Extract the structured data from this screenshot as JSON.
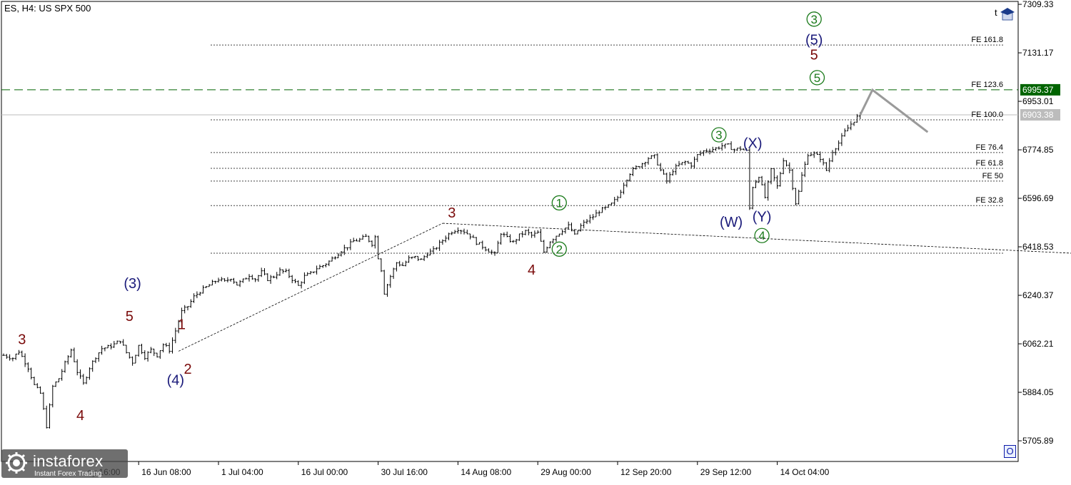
{
  "header": {
    "symbol": "ES, H4:  US SPX 500"
  },
  "corner_top_label": "t",
  "corner_bottom_label": "O",
  "logo": {
    "name": "instaforex",
    "tagline": "Instant Forex Trading"
  },
  "colors": {
    "price_bar": "#000000",
    "label_wave_red": "#7a0a0a",
    "label_wave_navy": "#1a1a7a",
    "label_wave_green": "#1a7a1a",
    "fib_line": "#444444",
    "target_line": "#006400",
    "current_line": "#bcbcbc",
    "forecast_line": "#9a9a9a"
  },
  "chart_data": {
    "type": "candlestick",
    "symbol": "ES",
    "timeframe": "H4",
    "y_axis": {
      "min": 5630,
      "max": 7320,
      "tick_labels": [
        "7309.33",
        "7131.17",
        "6953.01",
        "6774.85",
        "6596.69",
        "6418.53",
        "6240.37",
        "6062.21",
        "5884.05",
        "5705.89"
      ],
      "ticks": [
        7309.33,
        7131.17,
        6953.01,
        6774.85,
        6596.69,
        6418.53,
        6240.37,
        6062.21,
        5884.05,
        5705.89
      ]
    },
    "x_axis": {
      "tick_labels": [
        "16 Jun 08:00",
        "1 Jul 04:00",
        "16 Jul 00:00",
        "30 Jul 16:00",
        "14 Aug 08:00",
        "29 Aug 00:00",
        "12 Sep 20:00",
        "29 Sep 12:00",
        "14 Oct 04:00"
      ],
      "tick_bars": [
        44,
        70,
        96,
        122,
        148,
        174,
        200,
        226,
        252
      ],
      "partial_labels": [
        "ay 16:00"
      ],
      "partial_bars": [
        18
      ]
    },
    "price_labels": [
      {
        "text": "6995.37",
        "value": 6995.37,
        "style": "target"
      },
      {
        "text": "6903.38",
        "value": 6903.38,
        "style": "current"
      }
    ],
    "price_series": [
      {
        "bar": 0,
        "price": 6020
      },
      {
        "bar": 3,
        "price": 6010
      },
      {
        "bar": 5,
        "price": 6035
      },
      {
        "bar": 8,
        "price": 5975
      },
      {
        "bar": 10,
        "price": 5910
      },
      {
        "bar": 12,
        "price": 5880
      },
      {
        "bar": 14,
        "price": 5760
      },
      {
        "bar": 16,
        "price": 5905
      },
      {
        "bar": 18,
        "price": 5935
      },
      {
        "bar": 20,
        "price": 5990
      },
      {
        "bar": 22,
        "price": 6040
      },
      {
        "bar": 24,
        "price": 5960
      },
      {
        "bar": 26,
        "price": 5915
      },
      {
        "bar": 28,
        "price": 5975
      },
      {
        "bar": 30,
        "price": 6015
      },
      {
        "bar": 32,
        "price": 6045
      },
      {
        "bar": 34,
        "price": 6050
      },
      {
        "bar": 36,
        "price": 6060
      },
      {
        "bar": 38,
        "price": 6075
      },
      {
        "bar": 40,
        "price": 6030
      },
      {
        "bar": 42,
        "price": 5995
      },
      {
        "bar": 44,
        "price": 6055
      },
      {
        "bar": 46,
        "price": 6015
      },
      {
        "bar": 48,
        "price": 6040
      },
      {
        "bar": 50,
        "price": 6020
      },
      {
        "bar": 52,
        "price": 6060
      },
      {
        "bar": 54,
        "price": 6040
      },
      {
        "bar": 56,
        "price": 6110
      },
      {
        "bar": 58,
        "price": 6180
      },
      {
        "bar": 60,
        "price": 6200
      },
      {
        "bar": 62,
        "price": 6235
      },
      {
        "bar": 64,
        "price": 6255
      },
      {
        "bar": 66,
        "price": 6270
      },
      {
        "bar": 68,
        "price": 6285
      },
      {
        "bar": 70,
        "price": 6300
      },
      {
        "bar": 72,
        "price": 6290
      },
      {
        "bar": 74,
        "price": 6305
      },
      {
        "bar": 76,
        "price": 6280
      },
      {
        "bar": 78,
        "price": 6295
      },
      {
        "bar": 80,
        "price": 6315
      },
      {
        "bar": 82,
        "price": 6300
      },
      {
        "bar": 84,
        "price": 6325
      },
      {
        "bar": 86,
        "price": 6300
      },
      {
        "bar": 88,
        "price": 6310
      },
      {
        "bar": 90,
        "price": 6330
      },
      {
        "bar": 92,
        "price": 6325
      },
      {
        "bar": 94,
        "price": 6300
      },
      {
        "bar": 96,
        "price": 6275
      },
      {
        "bar": 98,
        "price": 6310
      },
      {
        "bar": 100,
        "price": 6320
      },
      {
        "bar": 102,
        "price": 6340
      },
      {
        "bar": 104,
        "price": 6350
      },
      {
        "bar": 106,
        "price": 6365
      },
      {
        "bar": 108,
        "price": 6385
      },
      {
        "bar": 110,
        "price": 6405
      },
      {
        "bar": 112,
        "price": 6420
      },
      {
        "bar": 114,
        "price": 6440
      },
      {
        "bar": 116,
        "price": 6445
      },
      {
        "bar": 118,
        "price": 6455
      },
      {
        "bar": 120,
        "price": 6430
      },
      {
        "bar": 121,
        "price": 6455
      },
      {
        "bar": 122,
        "price": 6380
      },
      {
        "bar": 123,
        "price": 6335
      },
      {
        "bar": 124,
        "price": 6250
      },
      {
        "bar": 126,
        "price": 6310
      },
      {
        "bar": 128,
        "price": 6360
      },
      {
        "bar": 130,
        "price": 6350
      },
      {
        "bar": 132,
        "price": 6375
      },
      {
        "bar": 134,
        "price": 6380
      },
      {
        "bar": 136,
        "price": 6370
      },
      {
        "bar": 138,
        "price": 6395
      },
      {
        "bar": 140,
        "price": 6405
      },
      {
        "bar": 142,
        "price": 6430
      },
      {
        "bar": 144,
        "price": 6455
      },
      {
        "bar": 146,
        "price": 6475
      },
      {
        "bar": 148,
        "price": 6485
      },
      {
        "bar": 150,
        "price": 6475
      },
      {
        "bar": 152,
        "price": 6460
      },
      {
        "bar": 154,
        "price": 6435
      },
      {
        "bar": 156,
        "price": 6420
      },
      {
        "bar": 158,
        "price": 6405
      },
      {
        "bar": 160,
        "price": 6390
      },
      {
        "bar": 162,
        "price": 6470
      },
      {
        "bar": 164,
        "price": 6450
      },
      {
        "bar": 166,
        "price": 6435
      },
      {
        "bar": 168,
        "price": 6460
      },
      {
        "bar": 170,
        "price": 6475
      },
      {
        "bar": 172,
        "price": 6460
      },
      {
        "bar": 174,
        "price": 6470
      },
      {
        "bar": 176,
        "price": 6400
      },
      {
        "bar": 178,
        "price": 6440
      },
      {
        "bar": 180,
        "price": 6460
      },
      {
        "bar": 182,
        "price": 6480
      },
      {
        "bar": 184,
        "price": 6495
      },
      {
        "bar": 186,
        "price": 6460
      },
      {
        "bar": 188,
        "price": 6495
      },
      {
        "bar": 190,
        "price": 6515
      },
      {
        "bar": 192,
        "price": 6530
      },
      {
        "bar": 194,
        "price": 6550
      },
      {
        "bar": 196,
        "price": 6560
      },
      {
        "bar": 198,
        "price": 6575
      },
      {
        "bar": 200,
        "price": 6600
      },
      {
        "bar": 202,
        "price": 6650
      },
      {
        "bar": 204,
        "price": 6690
      },
      {
        "bar": 206,
        "price": 6710
      },
      {
        "bar": 208,
        "price": 6725
      },
      {
        "bar": 210,
        "price": 6745
      },
      {
        "bar": 212,
        "price": 6750
      },
      {
        "bar": 214,
        "price": 6700
      },
      {
        "bar": 216,
        "price": 6660
      },
      {
        "bar": 218,
        "price": 6700
      },
      {
        "bar": 220,
        "price": 6720
      },
      {
        "bar": 222,
        "price": 6730
      },
      {
        "bar": 224,
        "price": 6720
      },
      {
        "bar": 226,
        "price": 6755
      },
      {
        "bar": 228,
        "price": 6770
      },
      {
        "bar": 230,
        "price": 6775
      },
      {
        "bar": 232,
        "price": 6780
      },
      {
        "bar": 234,
        "price": 6790
      },
      {
        "bar": 236,
        "price": 6790
      },
      {
        "bar": 238,
        "price": 6775
      },
      {
        "bar": 240,
        "price": 6780
      },
      {
        "bar": 242,
        "price": 6770
      },
      {
        "bar": 243,
        "price": 6560
      },
      {
        "bar": 244,
        "price": 6640
      },
      {
        "bar": 246,
        "price": 6680
      },
      {
        "bar": 248,
        "price": 6600
      },
      {
        "bar": 250,
        "price": 6700
      },
      {
        "bar": 252,
        "price": 6640
      },
      {
        "bar": 254,
        "price": 6740
      },
      {
        "bar": 256,
        "price": 6700
      },
      {
        "bar": 258,
        "price": 6580
      },
      {
        "bar": 259,
        "price": 6620
      },
      {
        "bar": 260,
        "price": 6680
      },
      {
        "bar": 262,
        "price": 6760
      },
      {
        "bar": 264,
        "price": 6760
      },
      {
        "bar": 266,
        "price": 6745
      },
      {
        "bar": 268,
        "price": 6700
      },
      {
        "bar": 270,
        "price": 6770
      },
      {
        "bar": 272,
        "price": 6800
      },
      {
        "bar": 274,
        "price": 6840
      },
      {
        "bar": 276,
        "price": 6870
      },
      {
        "bar": 278,
        "price": 6895
      },
      {
        "bar": 279,
        "price": 6903.38
      }
    ],
    "horizontal_levels": [
      {
        "label": "FE 161.8",
        "value": 7160,
        "style": "fib"
      },
      {
        "label": "FE 123.6",
        "value": 6995.37,
        "style": "target"
      },
      {
        "label": "",
        "value": 6903.38,
        "style": "current"
      },
      {
        "label": "FE 100.0",
        "value": 6885,
        "style": "fib"
      },
      {
        "label": "FE 76.4",
        "value": 6765,
        "style": "fib"
      },
      {
        "label": "FE 61.8",
        "value": 6707,
        "style": "fib"
      },
      {
        "label": "FE 50",
        "value": 6660,
        "style": "fib"
      },
      {
        "label": "FE 32.8",
        "value": 6570,
        "style": "fib"
      },
      {
        "label": "",
        "value": 6395,
        "style": "fib"
      }
    ],
    "trend_lines": [
      {
        "from": {
          "bar": 57,
          "price": 6035
        },
        "to": {
          "bar": 143,
          "price": 6505
        }
      },
      {
        "from": {
          "bar": 143,
          "price": 6505
        },
        "to": {
          "bar": 348,
          "price": 6395
        }
      }
    ],
    "forecast_path": [
      {
        "bar": 279,
        "price": 6903
      },
      {
        "bar": 283,
        "price": 6995
      },
      {
        "bar": 301,
        "price": 6840
      }
    ],
    "wave_labels": [
      {
        "text": "3",
        "bar": 6,
        "price": 6080,
        "color": "red",
        "circle": false
      },
      {
        "text": "4",
        "bar": 25,
        "price": 5800,
        "color": "red",
        "circle": false
      },
      {
        "text": "(3)",
        "bar": 42,
        "price": 6285,
        "color": "navy",
        "circle": false
      },
      {
        "text": "5",
        "bar": 41,
        "price": 6165,
        "color": "red",
        "circle": false
      },
      {
        "text": "(4)",
        "bar": 56,
        "price": 5930,
        "color": "navy",
        "circle": false
      },
      {
        "text": "1",
        "bar": 58,
        "price": 6135,
        "color": "red",
        "circle": false
      },
      {
        "text": "2",
        "bar": 60,
        "price": 5970,
        "color": "red",
        "circle": false
      },
      {
        "text": "3",
        "bar": 146,
        "price": 6545,
        "color": "red",
        "circle": false
      },
      {
        "text": "4",
        "bar": 172,
        "price": 6335,
        "color": "red",
        "circle": false
      },
      {
        "text": "1",
        "bar": 181,
        "price": 6580,
        "color": "green",
        "circle": true
      },
      {
        "text": "2",
        "bar": 181,
        "price": 6410,
        "color": "green",
        "circle": true
      },
      {
        "text": "3",
        "bar": 233,
        "price": 6830,
        "color": "green",
        "circle": true
      },
      {
        "text": "(W)",
        "bar": 237,
        "price": 6510,
        "color": "navy",
        "circle": false
      },
      {
        "text": "(X)",
        "bar": 244,
        "price": 6800,
        "color": "navy",
        "circle": false
      },
      {
        "text": "(Y)",
        "bar": 247,
        "price": 6530,
        "color": "navy",
        "circle": false
      },
      {
        "text": "4",
        "bar": 247,
        "price": 6460,
        "color": "green",
        "circle": true
      },
      {
        "text": "5",
        "bar": 265,
        "price": 7040,
        "color": "green",
        "circle": true
      },
      {
        "text": "5",
        "bar": 264,
        "price": 7125,
        "color": "red",
        "circle": false
      },
      {
        "text": "(5)",
        "bar": 264,
        "price": 7180,
        "color": "navy",
        "circle": false
      },
      {
        "text": "3",
        "bar": 264,
        "price": 7255,
        "color": "green",
        "circle": true
      }
    ]
  }
}
